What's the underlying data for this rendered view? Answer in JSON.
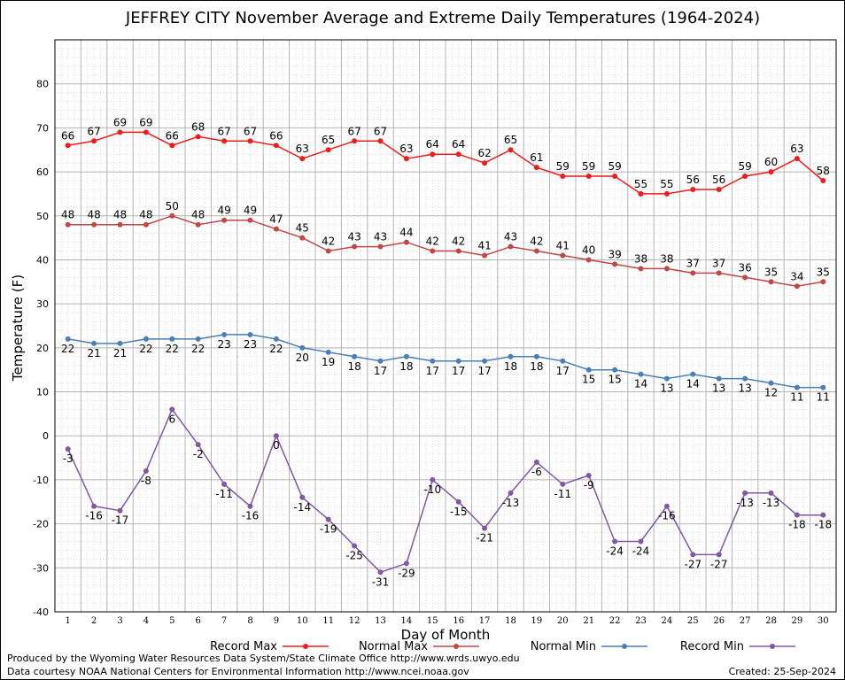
{
  "chart_data": {
    "type": "line",
    "title": "JEFFREY CITY November Average and Extreme Daily Temperatures (1964-2024)",
    "xlabel": "Day of Month",
    "ylabel": "Temperature (F)",
    "ylim": [
      -40,
      90
    ],
    "yticks": [
      -40,
      -30,
      -20,
      -10,
      0,
      10,
      20,
      30,
      40,
      50,
      60,
      70,
      80
    ],
    "x": [
      1,
      2,
      3,
      4,
      5,
      6,
      7,
      8,
      9,
      10,
      11,
      12,
      13,
      14,
      15,
      16,
      17,
      18,
      19,
      20,
      21,
      22,
      23,
      24,
      25,
      26,
      27,
      28,
      29,
      30
    ],
    "grid": true,
    "legend_position": "bottom",
    "series": [
      {
        "name": "Record Max",
        "color": "#ee1c1c",
        "label_pos": "above",
        "values": [
          66,
          67,
          69,
          69,
          66,
          68,
          67,
          67,
          66,
          63,
          65,
          67,
          67,
          63,
          64,
          64,
          62,
          65,
          61,
          59,
          59,
          59,
          55,
          55,
          56,
          56,
          59,
          60,
          63,
          58
        ]
      },
      {
        "name": "Normal Max",
        "color": "#c24747",
        "label_pos": "above",
        "values": [
          48,
          48,
          48,
          48,
          50,
          48,
          49,
          49,
          47,
          45,
          42,
          43,
          43,
          44,
          42,
          42,
          41,
          43,
          42,
          41,
          40,
          39,
          38,
          38,
          37,
          37,
          36,
          35,
          34,
          35
        ]
      },
      {
        "name": "Normal Min",
        "color": "#4a7fb5",
        "label_pos": "below",
        "values": [
          22,
          21,
          21,
          22,
          22,
          22,
          23,
          23,
          22,
          20,
          19,
          18,
          17,
          18,
          17,
          17,
          17,
          18,
          18,
          17,
          15,
          15,
          14,
          13,
          14,
          13,
          13,
          12,
          11,
          11
        ]
      },
      {
        "name": "Record Min",
        "color": "#8058a3",
        "label_pos": "below",
        "values": [
          -3,
          -16,
          -17,
          -8,
          6,
          -2,
          -11,
          -16,
          0,
          -14,
          -19,
          -25,
          -31,
          -29,
          -10,
          -15,
          -21,
          -13,
          -6,
          -11,
          -9,
          -24,
          -24,
          -16,
          -27,
          -27,
          -13,
          -13,
          -18,
          -18
        ]
      }
    ]
  },
  "footer": {
    "produced_by": "Produced by the Wyoming Water Resources Data System/State Climate Office http://www.wrds.uwyo.edu",
    "data_courtesy": "Data courtesy NOAA National Centers for Environmental Information http://www.ncei.noaa.gov",
    "created": "Created:  25-Sep-2024"
  }
}
